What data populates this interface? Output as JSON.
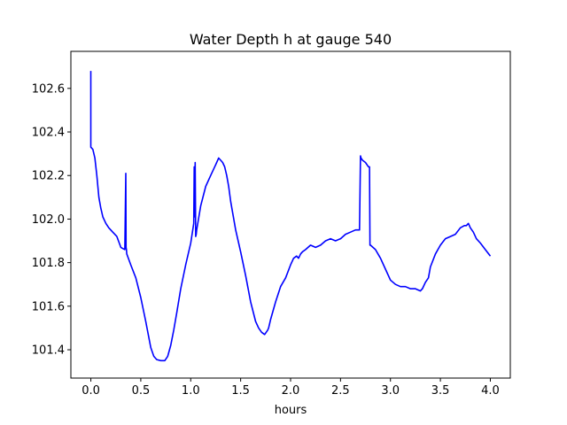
{
  "chart_data": {
    "type": "line",
    "title": "Water Depth h at gauge 540",
    "xlabel": "hours",
    "ylabel": "",
    "xlim": [
      -0.2,
      4.2
    ],
    "ylim": [
      101.27,
      102.77
    ],
    "grid": false,
    "x_ticks": [
      0.0,
      0.5,
      1.0,
      1.5,
      2.0,
      2.5,
      3.0,
      3.5,
      4.0
    ],
    "x_tick_labels": [
      "0.0",
      "0.5",
      "1.0",
      "1.5",
      "2.0",
      "2.5",
      "3.0",
      "3.5",
      "4.0"
    ],
    "y_ticks": [
      101.4,
      101.6,
      101.8,
      102.0,
      102.2,
      102.4,
      102.6
    ],
    "y_tick_labels": [
      "101.4",
      "101.6",
      "101.8",
      "102.0",
      "102.2",
      "102.4",
      "102.6"
    ],
    "series": [
      {
        "color": "#0000ff",
        "x": [
          0.0,
          0.0,
          0.02,
          0.04,
          0.06,
          0.08,
          0.1,
          0.12,
          0.15,
          0.18,
          0.22,
          0.26,
          0.3,
          0.34,
          0.35,
          0.353,
          0.356,
          0.36,
          0.4,
          0.45,
          0.5,
          0.55,
          0.6,
          0.63,
          0.66,
          0.7,
          0.74,
          0.77,
          0.8,
          0.83,
          0.86,
          0.9,
          0.95,
          1.0,
          1.03,
          1.035,
          1.04,
          1.045,
          1.05,
          1.055,
          1.06,
          1.1,
          1.15,
          1.2,
          1.25,
          1.28,
          1.3,
          1.32,
          1.34,
          1.36,
          1.38,
          1.4,
          1.45,
          1.5,
          1.55,
          1.6,
          1.65,
          1.68,
          1.71,
          1.74,
          1.77,
          1.78,
          1.8,
          1.85,
          1.9,
          1.95,
          2.0,
          2.03,
          2.06,
          2.08,
          2.1,
          2.12,
          2.15,
          2.2,
          2.25,
          2.3,
          2.35,
          2.4,
          2.45,
          2.5,
          2.55,
          2.6,
          2.65,
          2.69,
          2.7,
          2.705,
          2.72,
          2.75,
          2.78,
          2.79,
          2.795,
          2.8,
          2.85,
          2.9,
          2.95,
          3.0,
          3.05,
          3.1,
          3.15,
          3.2,
          3.25,
          3.3,
          3.32,
          3.35,
          3.38,
          3.4,
          3.45,
          3.5,
          3.55,
          3.6,
          3.65,
          3.7,
          3.74,
          3.76,
          3.78,
          3.8,
          3.83,
          3.86,
          3.9,
          3.95,
          4.0
        ],
        "y": [
          102.68,
          102.33,
          102.32,
          102.28,
          102.2,
          102.1,
          102.05,
          102.01,
          101.98,
          101.96,
          101.94,
          101.92,
          101.87,
          101.86,
          102.21,
          101.87,
          101.86,
          101.84,
          101.79,
          101.73,
          101.64,
          101.53,
          101.41,
          101.37,
          101.355,
          101.35,
          101.35,
          101.37,
          101.42,
          101.49,
          101.57,
          101.68,
          101.79,
          101.89,
          101.98,
          102.24,
          102.01,
          102.26,
          101.92,
          101.93,
          101.95,
          102.06,
          102.15,
          102.2,
          102.25,
          102.28,
          102.27,
          102.26,
          102.24,
          102.2,
          102.15,
          102.08,
          101.95,
          101.85,
          101.74,
          101.62,
          101.53,
          101.5,
          101.48,
          101.47,
          101.49,
          101.5,
          101.54,
          101.62,
          101.69,
          101.73,
          101.79,
          101.82,
          101.83,
          101.82,
          101.84,
          101.85,
          101.86,
          101.88,
          101.87,
          101.88,
          101.9,
          101.91,
          101.9,
          101.91,
          101.93,
          101.94,
          101.95,
          101.95,
          102.29,
          102.28,
          102.27,
          102.26,
          102.24,
          102.24,
          101.88,
          101.88,
          101.86,
          101.82,
          101.77,
          101.72,
          101.7,
          101.69,
          101.69,
          101.68,
          101.68,
          101.67,
          101.68,
          101.71,
          101.73,
          101.78,
          101.84,
          101.88,
          101.91,
          101.92,
          101.93,
          101.96,
          101.97,
          101.97,
          101.98,
          101.96,
          101.94,
          101.91,
          101.89,
          101.86,
          101.83
        ]
      }
    ]
  }
}
